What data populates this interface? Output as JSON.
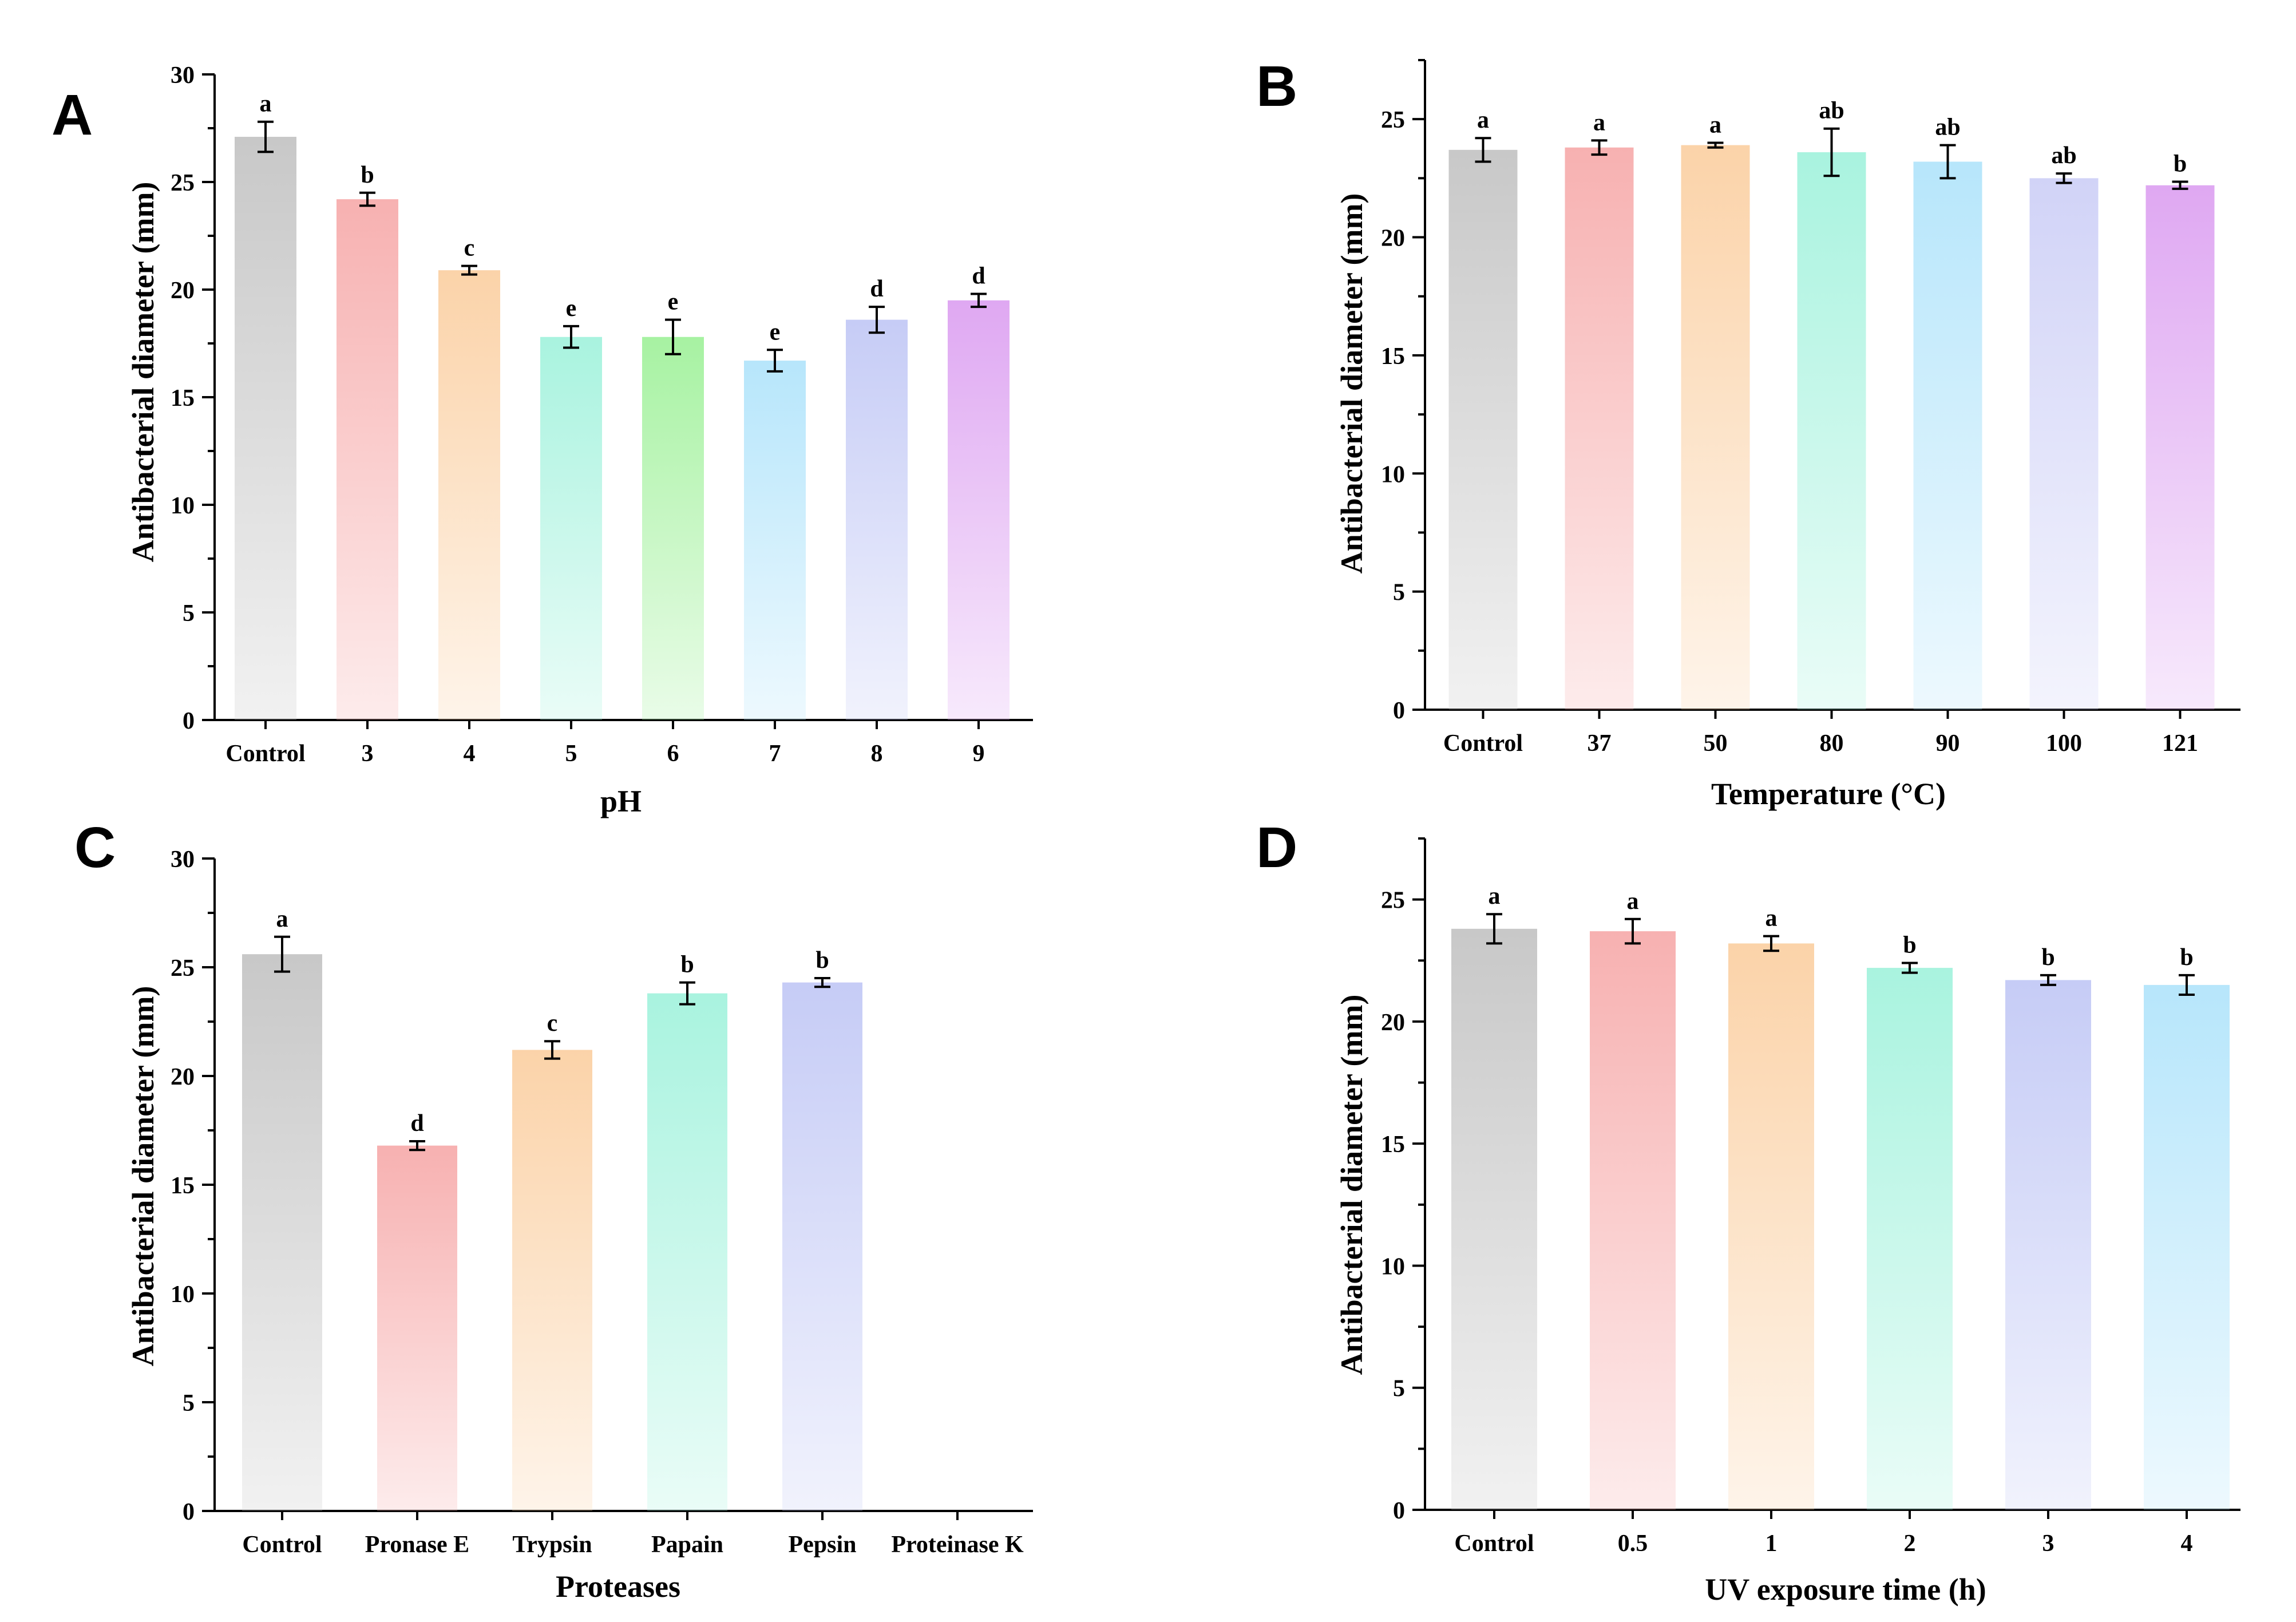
{
  "chart_data": [
    {
      "panel": "A",
      "type": "bar",
      "xlabel": "pH",
      "ylabel": "Antibacterial diameter (mm)",
      "ylim": [
        0,
        30
      ],
      "yticks": [
        0,
        5,
        10,
        15,
        20,
        25,
        30
      ],
      "categories": [
        "Control",
        "3",
        "4",
        "5",
        "6",
        "7",
        "8",
        "9"
      ],
      "values": [
        27.1,
        24.2,
        20.9,
        17.8,
        17.8,
        16.7,
        18.6,
        19.5
      ],
      "errors": [
        0.7,
        0.3,
        0.2,
        0.5,
        0.8,
        0.5,
        0.6,
        0.3
      ],
      "letters": [
        "a",
        "b",
        "c",
        "e",
        "e",
        "e",
        "d",
        "d"
      ],
      "colors": [
        "#c8c8c8",
        "#f7b1b1",
        "#fbd3a9",
        "#a9f3df",
        "#a7f2a2",
        "#b7e6fb",
        "#c6ccf6",
        "#dfa8f2"
      ]
    },
    {
      "panel": "B",
      "type": "bar",
      "xlabel": "Temperature (°C)",
      "ylabel": "Antibacterial diameter (mm)",
      "ylim": [
        0,
        27.5
      ],
      "yticks": [
        0,
        5,
        10,
        15,
        20,
        25
      ],
      "categories": [
        "Control",
        "37",
        "50",
        "80",
        "90",
        "100",
        "121"
      ],
      "values": [
        23.7,
        23.8,
        23.9,
        23.6,
        23.2,
        22.5,
        22.2
      ],
      "errors": [
        0.5,
        0.3,
        0.1,
        1.0,
        0.7,
        0.2,
        0.15
      ],
      "letters": [
        "a",
        "a",
        "a",
        "ab",
        "ab",
        "ab",
        "b"
      ],
      "colors": [
        "#c8c8c8",
        "#f7b1b1",
        "#fbd3a9",
        "#a9f3df",
        "#b7e6fb",
        "#d1d3f7",
        "#dfa8f2"
      ]
    },
    {
      "panel": "C",
      "type": "bar",
      "xlabel": "Proteases",
      "ylabel": "Antibacterial diameter (mm)",
      "ylim": [
        0,
        30
      ],
      "yticks": [
        0,
        5,
        10,
        15,
        20,
        25,
        30
      ],
      "categories": [
        "Control",
        "Pronase E",
        "Trypsin",
        "Papain",
        "Pepsin",
        "Proteinase K"
      ],
      "values": [
        25.6,
        16.8,
        21.2,
        23.8,
        24.3,
        0
      ],
      "errors": [
        0.8,
        0.2,
        0.4,
        0.5,
        0.2,
        0
      ],
      "letters": [
        "a",
        "d",
        "c",
        "b",
        "b",
        ""
      ],
      "colors": [
        "#c8c8c8",
        "#f7b1b1",
        "#fbd3a9",
        "#a9f3df",
        "#c6ccf6",
        "#ffffff"
      ]
    },
    {
      "panel": "D",
      "type": "bar",
      "xlabel": "UV exposure time (h)",
      "ylabel": "Antibacterial diameter (mm)",
      "ylim": [
        0,
        27.5
      ],
      "yticks": [
        0,
        5,
        10,
        15,
        20,
        25
      ],
      "categories": [
        "Control",
        "0.5",
        "1",
        "2",
        "3",
        "4"
      ],
      "values": [
        23.8,
        23.7,
        23.2,
        22.2,
        21.7,
        21.5
      ],
      "errors": [
        0.6,
        0.5,
        0.3,
        0.2,
        0.2,
        0.4
      ],
      "letters": [
        "a",
        "a",
        "a",
        "b",
        "b",
        "b"
      ],
      "colors": [
        "#c8c8c8",
        "#f7b1b1",
        "#fbd3a9",
        "#a9f3df",
        "#c6ccf6",
        "#b7e6fb"
      ]
    }
  ]
}
